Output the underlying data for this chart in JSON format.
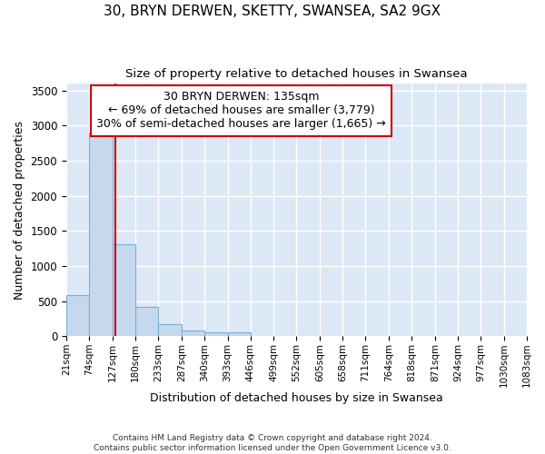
{
  "title": "30, BRYN DERWEN, SKETTY, SWANSEA, SA2 9GX",
  "subtitle": "Size of property relative to detached houses in Swansea",
  "xlabel": "Distribution of detached houses by size in Swansea",
  "ylabel": "Number of detached properties",
  "footer1": "Contains HM Land Registry data © Crown copyright and database right 2024.",
  "footer2": "Contains public sector information licensed under the Open Government Licence v3.0.",
  "bin_edges": [
    21,
    74,
    127,
    180,
    233,
    287,
    340,
    393,
    446,
    499,
    552,
    605,
    658,
    711,
    764,
    818,
    871,
    924,
    977,
    1030,
    1083
  ],
  "bin_labels": [
    "21sqm",
    "74sqm",
    "127sqm",
    "180sqm",
    "233sqm",
    "287sqm",
    "340sqm",
    "393sqm",
    "446sqm",
    "499sqm",
    "552sqm",
    "605sqm",
    "658sqm",
    "711sqm",
    "764sqm",
    "818sqm",
    "871sqm",
    "924sqm",
    "977sqm",
    "1030sqm",
    "1083sqm"
  ],
  "bar_heights": [
    580,
    2900,
    1310,
    420,
    170,
    75,
    50,
    50,
    0,
    0,
    0,
    0,
    0,
    0,
    0,
    0,
    0,
    0,
    0,
    0
  ],
  "bar_color": "#c5d8ee",
  "bar_edgecolor": "#7bafd4",
  "vline_x": 135,
  "vline_color": "#cc0000",
  "annotation_text": "30 BRYN DERWEN: 135sqm\n← 69% of detached houses are smaller (3,779)\n30% of semi-detached houses are larger (1,665) →",
  "annotation_box_color": "#cc0000",
  "ylim": [
    0,
    3600
  ],
  "plot_bg_color": "#dce8f5",
  "grid_color": "#ffffff",
  "title_fontsize": 11,
  "subtitle_fontsize": 9.5,
  "axis_label_fontsize": 9,
  "tick_fontsize": 7.5,
  "annotation_fontsize": 9
}
